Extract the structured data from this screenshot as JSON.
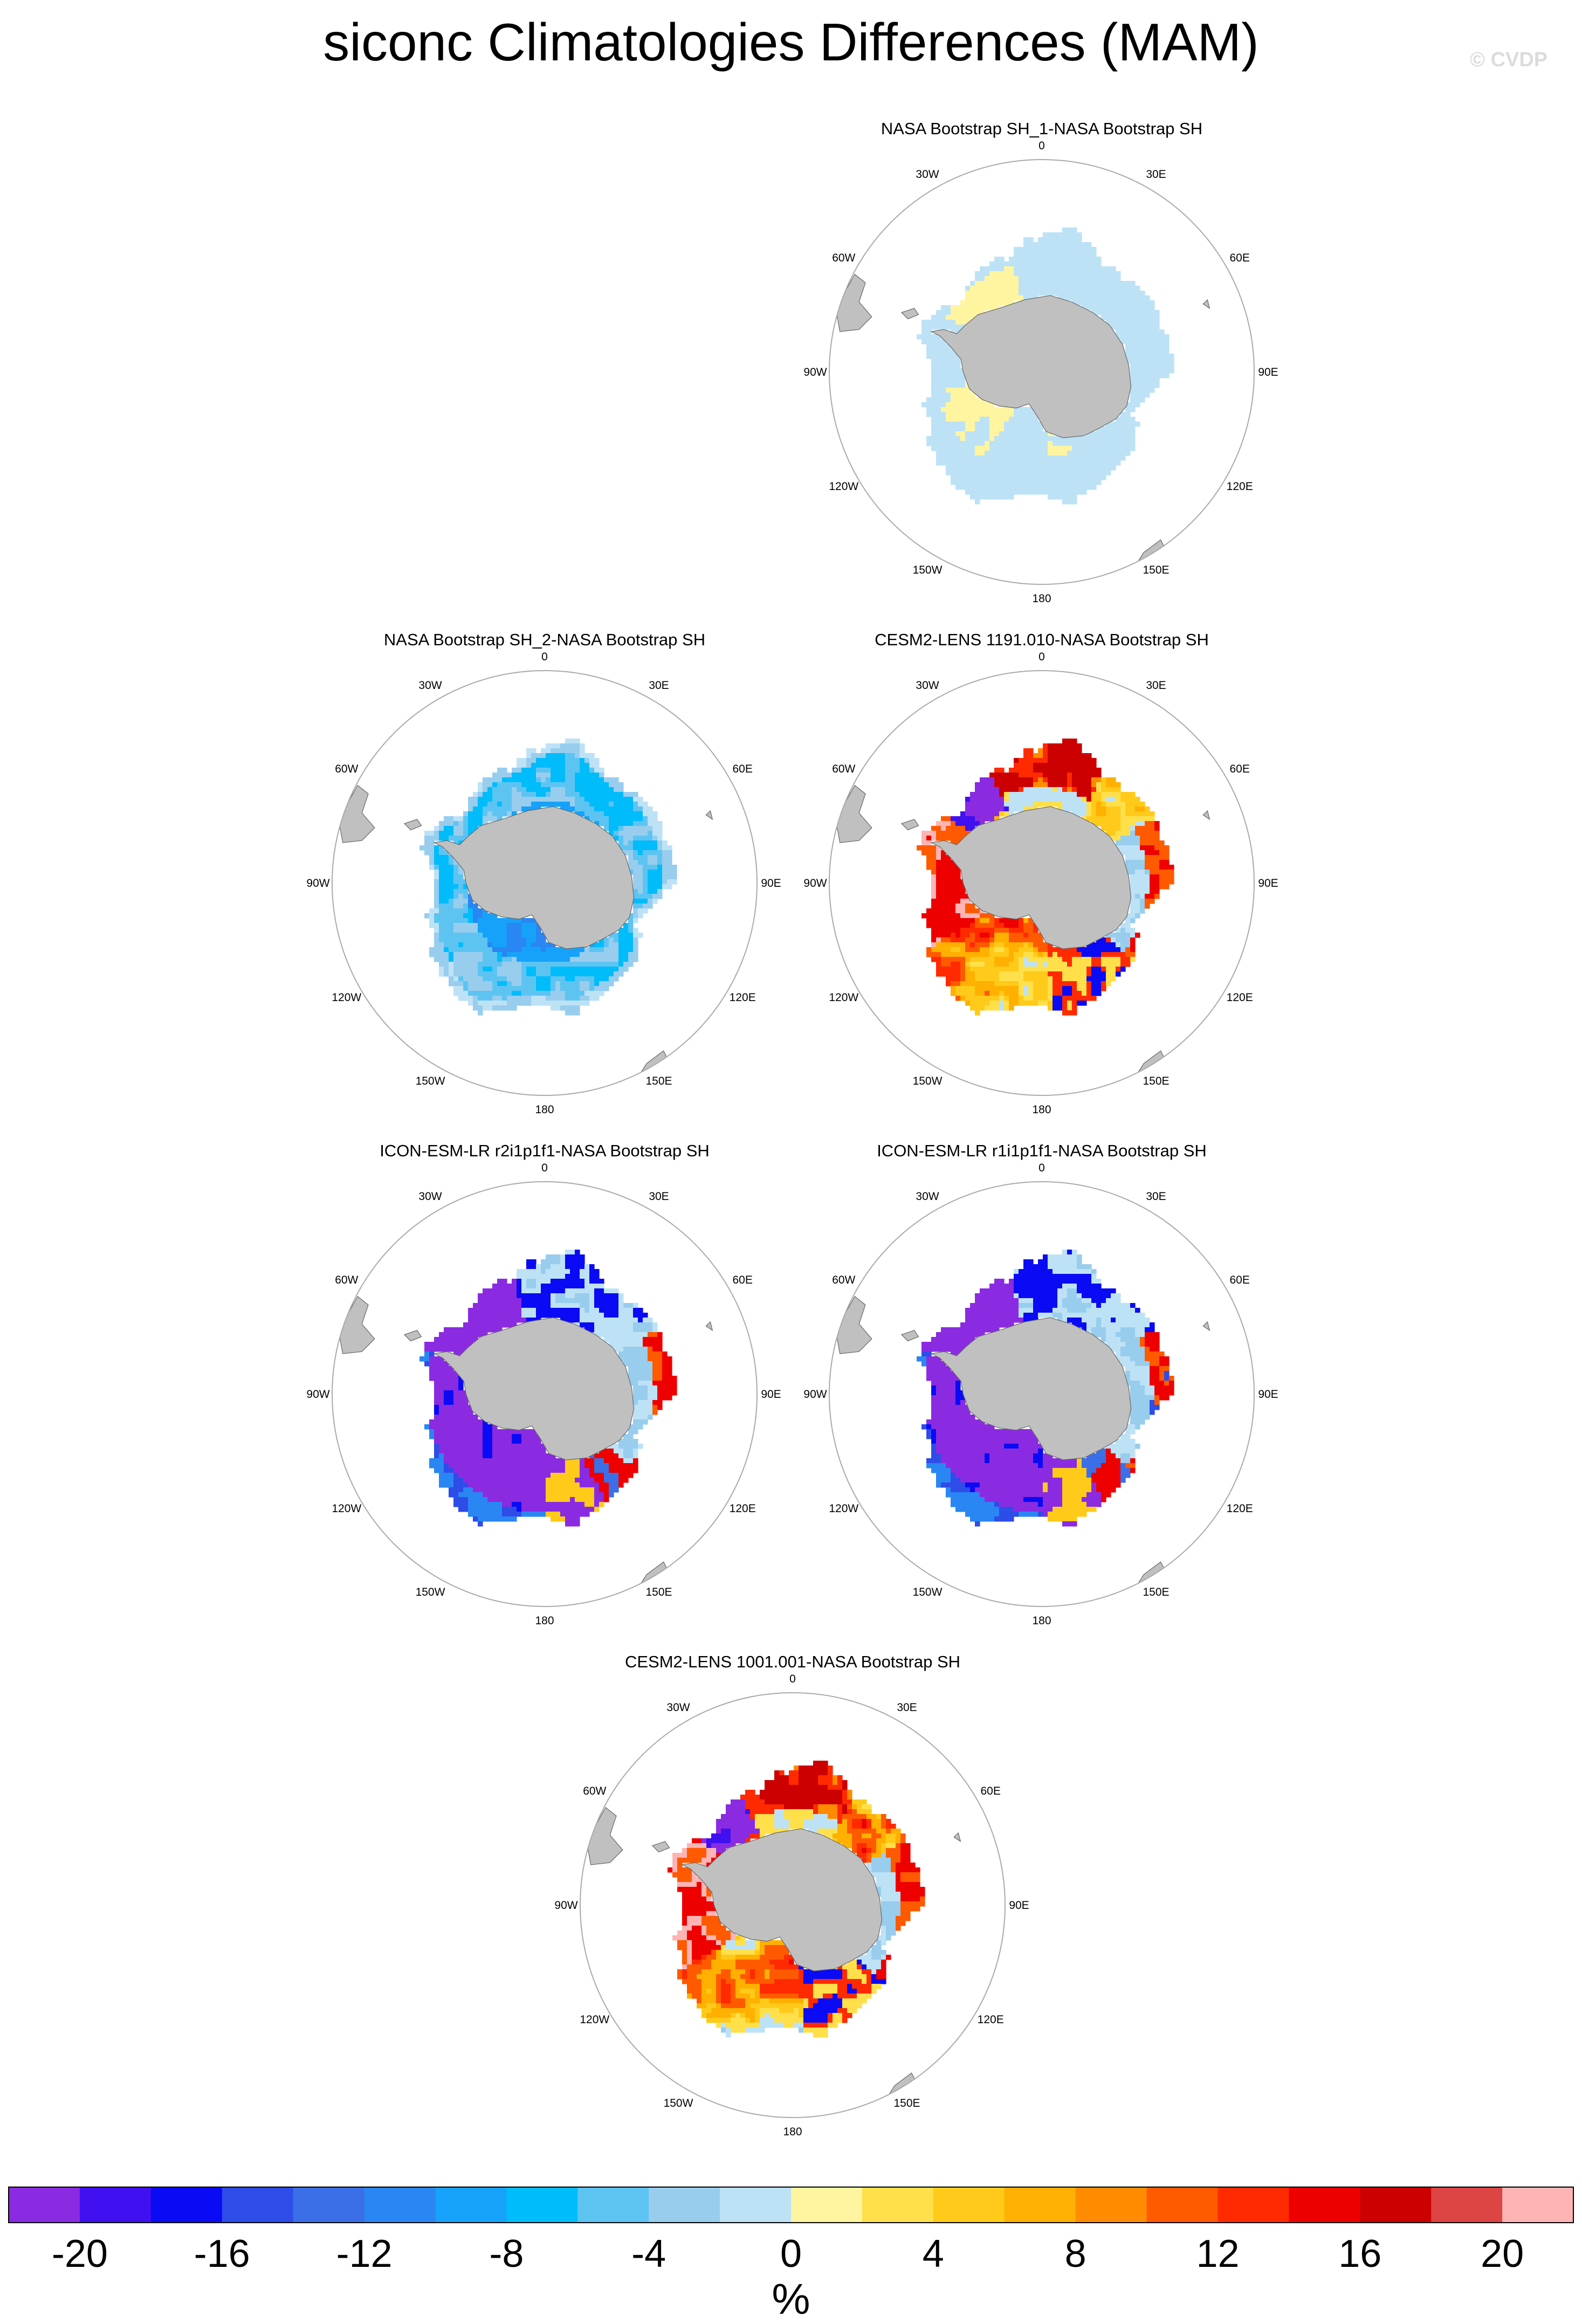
{
  "title": "siconc Climatologies Differences (MAM)",
  "watermark": "© CVDP",
  "longitude_labels": [
    "0",
    "30E",
    "60E",
    "90E",
    "120E",
    "150E",
    "180",
    "150W",
    "120W",
    "90W",
    "60W",
    "30W"
  ],
  "colors": {
    "land": "#c0c0c0",
    "circle": "#aaaaaa",
    "palette": [
      "#8a2be2",
      "#4010f0",
      "#0a0af5",
      "#2e4ce8",
      "#3a6fe8",
      "#2a86f2",
      "#16a2fa",
      "#00bcfa",
      "#5dc4f2",
      "#98cdee",
      "#bde2f6",
      "#fff5a0",
      "#ffe04a",
      "#ffca1a",
      "#ffb000",
      "#ff8c00",
      "#ff5a00",
      "#ff2a00",
      "#ee0000",
      "#cc0000",
      "#dd4444",
      "#ffb4b4"
    ]
  },
  "panels": [
    {
      "title": "NASA Bootstrap SH_1-NASA Bootstrap SH",
      "pattern": "obs1"
    },
    {
      "title": "NASA Bootstrap SH_2-NASA Bootstrap SH",
      "pattern": "obs2"
    },
    {
      "title": "CESM2-LENS 1191.010-NASA Bootstrap SH",
      "pattern": "cesm"
    },
    {
      "title": "ICON-ESM-LR r2i1p1f1-NASA Bootstrap SH",
      "pattern": "icon"
    },
    {
      "title": "ICON-ESM-LR r1i1p1f1-NASA Bootstrap SH",
      "pattern": "icon"
    },
    {
      "title": "CESM2-LENS 1001.001-NASA Bootstrap SH",
      "pattern": "cesm"
    }
  ],
  "colorbar": {
    "ticks": [
      "-20",
      "-16",
      "-12",
      "-8",
      "-4",
      "0",
      "4",
      "8",
      "12",
      "16",
      "20"
    ],
    "units": "%"
  }
}
